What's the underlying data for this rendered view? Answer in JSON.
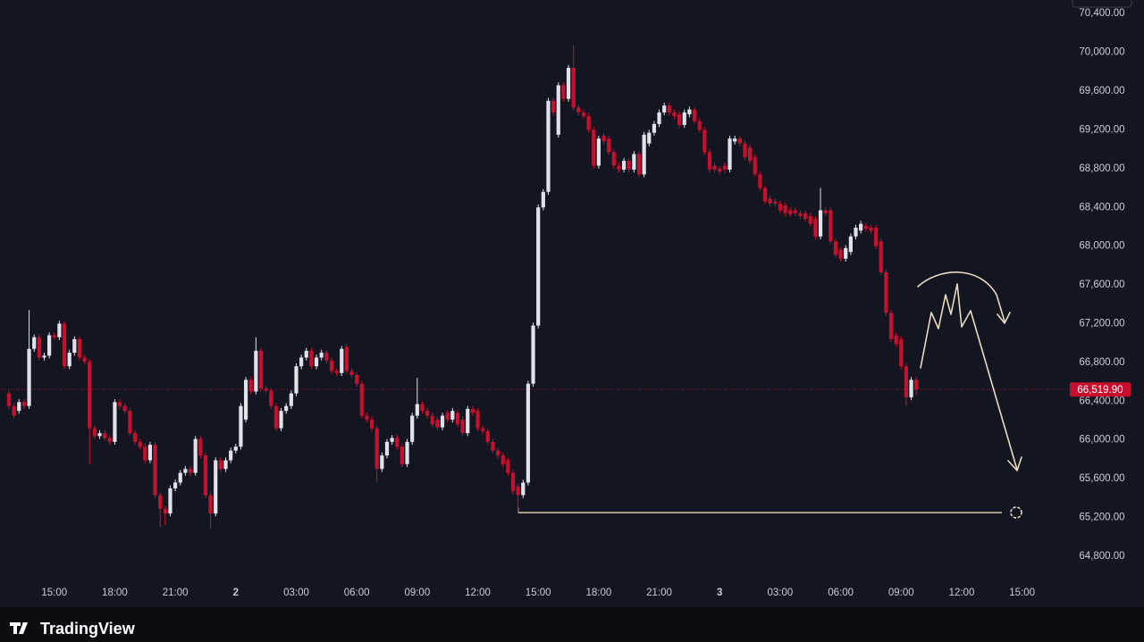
{
  "chart_data": {
    "type": "candlestick",
    "brand": "TradingView",
    "up_color": "#dfe2ea",
    "down_color": "#c8102e",
    "ylim": [
      64320,
      70540
    ],
    "yticks": [
      {
        "value": 64800,
        "label": "64,800.00"
      },
      {
        "value": 65200,
        "label": "65,200.00"
      },
      {
        "value": 65600,
        "label": "65,600.00"
      },
      {
        "value": 66000,
        "label": "66,000.00"
      },
      {
        "value": 66400,
        "label": "66,400.00"
      },
      {
        "value": 66800,
        "label": "66,800.00"
      },
      {
        "value": 67200,
        "label": "67,200.00"
      },
      {
        "value": 67600,
        "label": "67,600.00"
      },
      {
        "value": 68000,
        "label": "68,000.00"
      },
      {
        "value": 68400,
        "label": "68,400.00"
      },
      {
        "value": 68800,
        "label": "68,800.00"
      },
      {
        "value": 69200,
        "label": "69,200.00"
      },
      {
        "value": 69600,
        "label": "69,600.00"
      },
      {
        "value": 70000,
        "label": "70,000.00"
      },
      {
        "value": 70400,
        "label": "70,400.00"
      }
    ],
    "price_line": {
      "value": 66519.9,
      "label": "66,519.90"
    },
    "horizontal_line": 65250,
    "categories": [
      null,
      null,
      null,
      null,
      null,
      null,
      null,
      null,
      null,
      "15:00",
      null,
      null,
      null,
      null,
      null,
      null,
      null,
      null,
      null,
      null,
      null,
      "18:00",
      null,
      null,
      null,
      null,
      null,
      null,
      null,
      null,
      null,
      null,
      null,
      "21:00",
      null,
      null,
      null,
      null,
      null,
      null,
      null,
      null,
      null,
      null,
      null,
      "2",
      null,
      null,
      null,
      null,
      null,
      null,
      null,
      null,
      null,
      null,
      null,
      "03:00",
      null,
      null,
      null,
      null,
      null,
      null,
      null,
      null,
      null,
      null,
      null,
      "06:00",
      null,
      null,
      null,
      null,
      null,
      null,
      null,
      null,
      null,
      null,
      null,
      "09:00",
      null,
      null,
      null,
      null,
      null,
      null,
      null,
      null,
      null,
      null,
      null,
      "12:00",
      null,
      null,
      null,
      null,
      null,
      null,
      null,
      null,
      null,
      null,
      null,
      "15:00",
      null,
      null,
      null,
      null,
      null,
      null,
      null,
      null,
      null,
      null,
      null,
      "18:00",
      null,
      null,
      null,
      null,
      null,
      null,
      null,
      null,
      null,
      null,
      null,
      "21:00",
      null,
      null,
      null,
      null,
      null,
      null,
      null,
      null,
      null,
      null,
      null,
      "3",
      null,
      null,
      null,
      null,
      null,
      null,
      null,
      null,
      null,
      null,
      null,
      "03:00",
      null,
      null,
      null,
      null,
      null,
      null,
      null,
      null,
      null,
      null,
      null,
      "06:00",
      null,
      null,
      null,
      null,
      null,
      null,
      null,
      null,
      null,
      null,
      null,
      "09:00",
      null,
      null,
      null,
      null,
      null,
      null,
      null,
      null,
      null,
      null,
      null,
      "12:00",
      null,
      null,
      null,
      null,
      null,
      null,
      null,
      null,
      null,
      null,
      null,
      "15:00"
    ],
    "open": [
      66480,
      66350,
      66300,
      66390,
      66350,
      66940,
      67060,
      66850,
      66870,
      67080,
      67060,
      67200,
      66760,
      66900,
      67040,
      66850,
      66810,
      66120,
      66040,
      66070,
      66020,
      65980,
      66390,
      66350,
      66300,
      66070,
      65980,
      65930,
      65790,
      65950,
      65430,
      65290,
      65240,
      65500,
      65560,
      65660,
      65700,
      65660,
      66010,
      65840,
      65430,
      65240,
      65790,
      65700,
      65790,
      65890,
      65930,
      66210,
      66620,
      66500,
      66920,
      66530,
      66510,
      66350,
      66120,
      66300,
      66350,
      66480,
      66760,
      66850,
      66920,
      66760,
      66850,
      66900,
      66820,
      66710,
      66690,
      66960,
      66710,
      66670,
      66580,
      66250,
      66210,
      66120,
      65700,
      65840,
      65980,
      66020,
      65930,
      65750,
      65980,
      66250,
      66370,
      66300,
      66250,
      66210,
      66130,
      66280,
      66210,
      66280,
      66210,
      66070,
      66320,
      66300,
      66120,
      66090,
      65980,
      65890,
      65840,
      65790,
      65660,
      65520,
      65430,
      65560,
      66580,
      67180,
      68400,
      68560,
      69500,
      69150,
      69660,
      69520,
      69840,
      69430,
      69380,
      69340,
      69200,
      68830,
      69140,
      69110,
      68970,
      68830,
      68790,
      68880,
      68790,
      68950,
      68740,
      69060,
      69170,
      69260,
      69380,
      69450,
      69380,
      69360,
      69250,
      69360,
      69410,
      69290,
      69200,
      68970,
      68830,
      68800,
      68830,
      68790,
      69080,
      69110,
      69060,
      69020,
      68920,
      68740,
      68600,
      68490,
      68460,
      68440,
      68420,
      68370,
      68370,
      68340,
      68340,
      68310,
      68280,
      68100,
      68370,
      68370,
      68050,
      67960,
      67870,
      67940,
      68100,
      68160,
      68210,
      68190,
      68190,
      68050,
      67730,
      67310,
      67080,
      67040,
      66760,
      66440,
      66620,
      null,
      null,
      null,
      null,
      null,
      null,
      null,
      null,
      null,
      null,
      null,
      null,
      null,
      null,
      null,
      null,
      null,
      null,
      null,
      null,
      null
    ],
    "high": [
      66510,
      66380,
      66420,
      66420,
      67340,
      67090,
      67090,
      66900,
      67110,
      67110,
      67230,
      67230,
      66930,
      67070,
      67070,
      66880,
      66840,
      66150,
      66100,
      66100,
      66050,
      66420,
      66420,
      66380,
      66330,
      66100,
      66010,
      65960,
      65980,
      65980,
      65460,
      65320,
      65530,
      65590,
      65690,
      65730,
      65730,
      66040,
      66040,
      65870,
      65460,
      65820,
      65820,
      65820,
      65920,
      65960,
      66380,
      66650,
      66650,
      67060,
      66950,
      66560,
      66540,
      66380,
      66330,
      66380,
      66510,
      66790,
      66880,
      66950,
      66950,
      66880,
      66930,
      66930,
      66850,
      66740,
      66970,
      66990,
      66740,
      66700,
      66610,
      66280,
      66240,
      66150,
      65870,
      66010,
      66050,
      66050,
      65960,
      66010,
      66280,
      66640,
      66400,
      66330,
      66280,
      66240,
      66280,
      66310,
      66330,
      66310,
      66240,
      66350,
      66350,
      66330,
      66150,
      66120,
      66010,
      65920,
      65870,
      65820,
      65690,
      65550,
      65590,
      66610,
      67210,
      68430,
      68590,
      69530,
      69530,
      69690,
      69690,
      69870,
      70070,
      69460,
      69410,
      69370,
      69230,
      69140,
      69170,
      69140,
      69000,
      68860,
      68910,
      68910,
      68980,
      68980,
      69180,
      69200,
      69290,
      69410,
      69480,
      69480,
      69410,
      69390,
      69410,
      69440,
      69440,
      69320,
      69230,
      69000,
      68860,
      68830,
      68860,
      69140,
      69140,
      69140,
      69090,
      69050,
      68950,
      68770,
      68630,
      68520,
      68490,
      68470,
      68450,
      68400,
      68400,
      68370,
      68370,
      68340,
      68310,
      68600,
      68400,
      68400,
      68080,
      67990,
      68010,
      68130,
      68220,
      68260,
      68240,
      68220,
      68220,
      68080,
      67760,
      67340,
      67110,
      67070,
      66790,
      66650,
      66650,
      null,
      null,
      null,
      null,
      null,
      null,
      null,
      null,
      null,
      null,
      null,
      null,
      null,
      null,
      null,
      null,
      null,
      null,
      null,
      null,
      null
    ],
    "low": [
      66320,
      66220,
      66270,
      66320,
      66320,
      66910,
      66820,
      66820,
      66840,
      67030,
      67030,
      66730,
      66730,
      66870,
      66820,
      66780,
      65750,
      66010,
      66010,
      65990,
      65950,
      65950,
      66320,
      66270,
      66040,
      65950,
      65900,
      65760,
      65760,
      65400,
      65100,
      65120,
      65210,
      65470,
      65530,
      65630,
      65630,
      65630,
      65810,
      65400,
      65080,
      65210,
      65670,
      65670,
      65760,
      65860,
      65900,
      66180,
      66470,
      66470,
      66500,
      66480,
      66320,
      66090,
      66090,
      66270,
      66320,
      66450,
      66730,
      66820,
      66730,
      66730,
      66820,
      66790,
      66680,
      66660,
      66660,
      66680,
      66640,
      66550,
      66220,
      66180,
      66090,
      65560,
      65670,
      65810,
      65950,
      65900,
      65720,
      65720,
      65950,
      66220,
      66270,
      66220,
      66130,
      66100,
      66100,
      66180,
      66180,
      66130,
      66040,
      66040,
      66250,
      66090,
      66060,
      65950,
      65860,
      65810,
      65720,
      65630,
      65440,
      65250,
      65400,
      65530,
      66550,
      67150,
      68370,
      68530,
      69350,
      69120,
      69490,
      69490,
      69400,
      69350,
      69310,
      69170,
      68800,
      68800,
      69050,
      68940,
      68800,
      68760,
      68760,
      68760,
      68760,
      68710,
      68710,
      69030,
      69140,
      69230,
      69350,
      69350,
      69310,
      69220,
      69220,
      69330,
      69260,
      69170,
      68940,
      68760,
      68760,
      68740,
      68760,
      68760,
      69050,
      69030,
      68890,
      68850,
      68710,
      68570,
      68430,
      68410,
      68410,
      68340,
      68310,
      68300,
      68310,
      68280,
      68250,
      68200,
      68070,
      68070,
      68310,
      68020,
      67880,
      67840,
      67840,
      67910,
      68070,
      68130,
      68150,
      68130,
      67970,
      67700,
      67280,
      67010,
      66960,
      66730,
      66350,
      66410,
      66460,
      null,
      null,
      null,
      null,
      null,
      null,
      null,
      null,
      null,
      null,
      null,
      null,
      null,
      null,
      null,
      null,
      null,
      null,
      null,
      null,
      null
    ],
    "close": [
      66350,
      66250,
      66390,
      66350,
      66940,
      67060,
      66850,
      66870,
      67080,
      67060,
      67200,
      66760,
      66900,
      67040,
      66850,
      66810,
      66120,
      66040,
      66070,
      66020,
      65980,
      66390,
      66350,
      66300,
      66070,
      65980,
      65930,
      65790,
      65950,
      65430,
      65290,
      65240,
      65500,
      65560,
      65660,
      65700,
      65660,
      66010,
      65840,
      65430,
      65240,
      65790,
      65700,
      65790,
      65890,
      65930,
      66350,
      66620,
      66500,
      66920,
      66530,
      66510,
      66350,
      66120,
      66300,
      66350,
      66480,
      66760,
      66850,
      66920,
      66760,
      66850,
      66900,
      66820,
      66710,
      66690,
      66940,
      66710,
      66670,
      66580,
      66250,
      66210,
      66120,
      65700,
      65840,
      65980,
      66020,
      65930,
      65750,
      65980,
      66250,
      66370,
      66300,
      66250,
      66160,
      66130,
      66250,
      66210,
      66300,
      66160,
      66070,
      66320,
      66280,
      66120,
      66090,
      65980,
      65890,
      65840,
      65750,
      65660,
      65470,
      65430,
      65560,
      66580,
      67180,
      68400,
      68560,
      69500,
      69380,
      69660,
      69520,
      69840,
      69430,
      69380,
      69340,
      69200,
      68830,
      69110,
      69080,
      68970,
      68830,
      68790,
      68880,
      68790,
      68950,
      68740,
      69150,
      69170,
      69260,
      69380,
      69450,
      69380,
      69340,
      69250,
      69380,
      69410,
      69290,
      69200,
      68970,
      68790,
      68790,
      68770,
      68790,
      69110,
      69110,
      69060,
      68920,
      68880,
      68740,
      68600,
      68460,
      68440,
      68440,
      68370,
      68340,
      68330,
      68340,
      68310,
      68280,
      68230,
      68100,
      68370,
      68340,
      68050,
      67910,
      67870,
      67980,
      68100,
      68190,
      68230,
      68180,
      68160,
      68000,
      67730,
      67310,
      67040,
      66990,
      66760,
      66440,
      66620,
      66519.9,
      null,
      null,
      null,
      null,
      null,
      null,
      null,
      null,
      null,
      null,
      null,
      null,
      null,
      null,
      null,
      null,
      null,
      null,
      null,
      null,
      null
    ]
  }
}
